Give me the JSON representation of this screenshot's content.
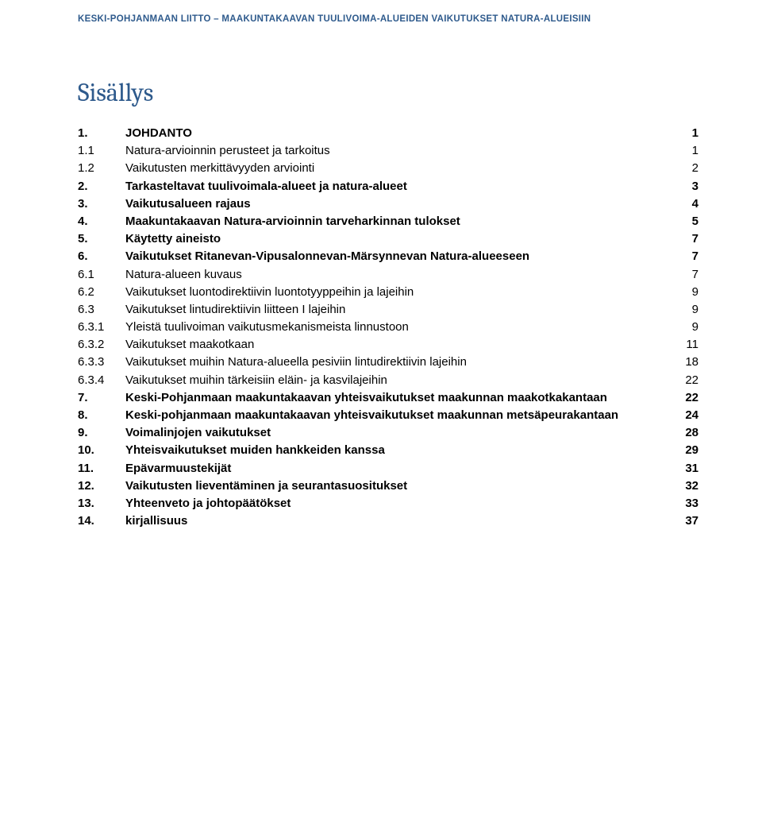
{
  "header": "KESKI-POHJANMAAN LIITTO – MAAKUNTAKAAVAN TUULIVOIMA-ALUEIDEN VAIKUTUKSET NATURA-ALUEISIIN",
  "title": "Sisällys",
  "toc": [
    {
      "num": "1.",
      "label": "JOHDANTO",
      "page": "1",
      "bold": true
    },
    {
      "num": "1.1",
      "label": "Natura-arvioinnin perusteet ja tarkoitus",
      "page": "1",
      "bold": false
    },
    {
      "num": "1.2",
      "label": "Vaikutusten merkittävyyden arviointi",
      "page": "2",
      "bold": false
    },
    {
      "num": "2.",
      "label": "Tarkasteltavat tuulivoimala-alueet ja natura-alueet",
      "page": "3",
      "bold": true
    },
    {
      "num": "3.",
      "label": "Vaikutusalueen rajaus",
      "page": "4",
      "bold": true
    },
    {
      "num": "4.",
      "label": "Maakuntakaavan Natura-arvioinnin tarveharkinnan tulokset",
      "page": "5",
      "bold": true,
      "justify": true
    },
    {
      "num": "5.",
      "label": "Käytetty aineisto",
      "page": "7",
      "bold": true
    },
    {
      "num": "6.",
      "label": "Vaikutukset Ritanevan-Vipusalonnevan-Märsynnevan Natura-alueeseen",
      "page": "7",
      "bold": true,
      "justify": true
    },
    {
      "num": "6.1",
      "label": "Natura-alueen kuvaus",
      "page": "7",
      "bold": false
    },
    {
      "num": "6.2",
      "label": "Vaikutukset luontodirektiivin luontotyyppeihin ja lajeihin",
      "page": "9",
      "bold": false
    },
    {
      "num": "6.3",
      "label": "Vaikutukset lintudirektiivin liitteen I lajeihin",
      "page": "9",
      "bold": false
    },
    {
      "num": "6.3.1",
      "label": "Yleistä tuulivoiman vaikutusmekanismeista linnustoon",
      "page": "9",
      "bold": false
    },
    {
      "num": "6.3.2",
      "label": "Vaikutukset maakotkaan",
      "page": "11",
      "bold": false
    },
    {
      "num": "6.3.3",
      "label": "Vaikutukset muihin Natura-alueella pesiviin lintudirektiivin lajeihin",
      "page": "18",
      "bold": false,
      "justify": true
    },
    {
      "num": "6.3.4",
      "label": "Vaikutukset muihin tärkeisiin eläin- ja kasvilajeihin",
      "page": "22",
      "bold": false
    },
    {
      "num": "7.",
      "label": "Keski-Pohjanmaan maakuntakaavan yhteisvaikutukset maakunnan maakotkakantaan",
      "page": "22",
      "bold": true
    },
    {
      "num": "8.",
      "label": "Keski-pohjanmaan maakuntakaavan yhteisvaikutukset maakunnan metsäpeurakantaan",
      "page": "24",
      "bold": true
    },
    {
      "num": "9.",
      "label": "Voimalinjojen vaikutukset",
      "page": "28",
      "bold": true
    },
    {
      "num": "10.",
      "label": "Yhteisvaikutukset muiden hankkeiden kanssa",
      "page": "29",
      "bold": true
    },
    {
      "num": "11.",
      "label": "Epävarmuustekijät",
      "page": "31",
      "bold": true
    },
    {
      "num": "12.",
      "label": "Vaikutusten lieventäminen ja seurantasuositukset",
      "page": "32",
      "bold": true
    },
    {
      "num": "13.",
      "label": "Yhteenveto ja johtopäätökset",
      "page": "33",
      "bold": true
    },
    {
      "num": "14.",
      "label": "kirjallisuus",
      "page": "37",
      "bold": true
    }
  ]
}
